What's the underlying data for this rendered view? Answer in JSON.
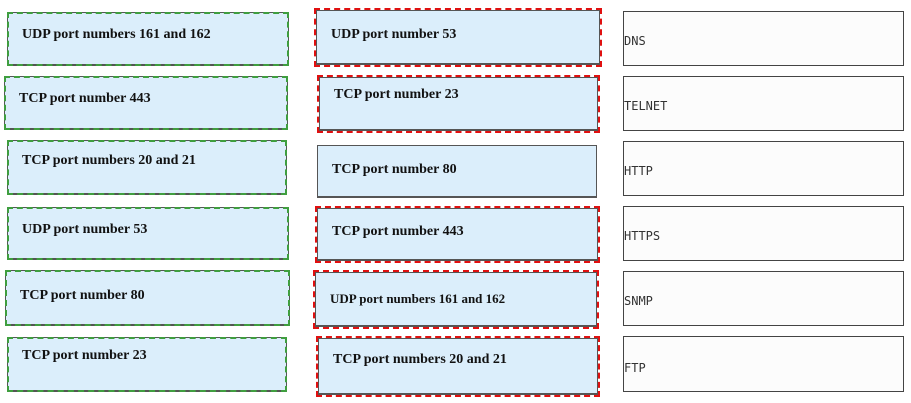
{
  "left_items": [
    "UDP port numbers 161 and 162",
    "TCP port number 443",
    "TCP port numbers 20 and 21",
    "UDP port number 53",
    "TCP port number 80",
    "TCP port number 23"
  ],
  "middle_items": [
    "UDP port number 53",
    "TCP port number 23",
    "TCP port number 80",
    "TCP port number 443",
    "UDP port numbers 161 and 162",
    "TCP port numbers 20 and 21"
  ],
  "targets": [
    "DNS",
    "TELNET",
    "HTTP",
    "HTTPS",
    "SNMP",
    "FTP"
  ],
  "colors": {
    "box_fill": "#dbeefb",
    "green_dash": "#3f9e3f",
    "red_dash": "#e01010"
  }
}
